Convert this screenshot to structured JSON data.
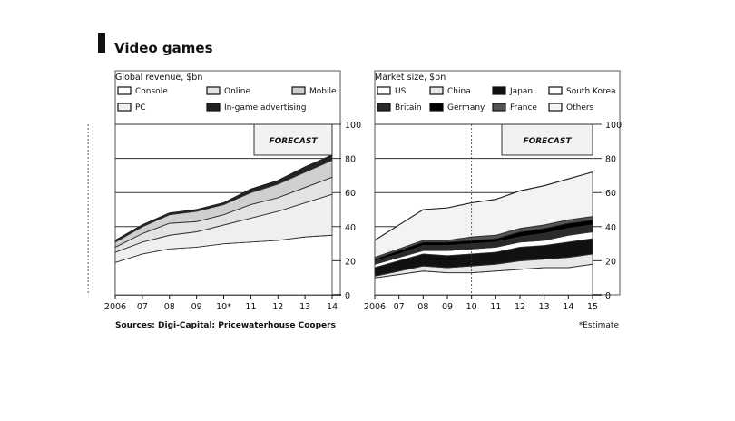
{
  "figure": {
    "title": "Video games",
    "source": "Sources: Digi-Capital; Pricewaterhouse Coopers",
    "footnote": "*Estimate"
  },
  "chart_data": [
    {
      "type": "area",
      "title": "Global revenue, $bn",
      "annotation": "FORECAST",
      "forecast_from": "2010*",
      "stacked": true,
      "x": [
        "2006",
        "07",
        "08",
        "09",
        "10*",
        "11",
        "12",
        "13",
        "14"
      ],
      "ylim": [
        0,
        100
      ],
      "yticks": [
        0,
        20,
        40,
        60,
        80,
        100
      ],
      "grid": true,
      "y_axis_side": "right",
      "legend_position": "top",
      "series": [
        {
          "name": "Console",
          "color": "#ffffff",
          "values": [
            19,
            24,
            27,
            28,
            30,
            31,
            32,
            34,
            35
          ]
        },
        {
          "name": "PC",
          "color": "#efefef",
          "values": [
            6,
            7,
            8,
            9,
            11,
            14,
            17,
            20,
            24
          ]
        },
        {
          "name": "Online",
          "color": "#e3e3e3",
          "values": [
            3,
            5,
            7,
            6,
            6,
            8,
            8,
            9,
            10
          ]
        },
        {
          "name": "Mobile",
          "color": "#cfcfcf",
          "values": [
            3,
            4,
            5,
            6,
            6,
            7,
            8,
            9,
            10
          ]
        },
        {
          "name": "In-game advertising",
          "color": "#222222",
          "values": [
            1,
            1,
            1,
            1,
            1,
            2,
            2,
            3,
            3
          ]
        }
      ],
      "legend": [
        {
          "name": "Console",
          "color": "#ffffff"
        },
        {
          "name": "Online",
          "color": "#e3e3e3"
        },
        {
          "name": "Mobile",
          "color": "#cfcfcf"
        },
        {
          "name": "PC",
          "color": "#efefef"
        },
        {
          "name": "In-game advertising",
          "color": "#222222"
        }
      ]
    },
    {
      "type": "area",
      "title": "Market size, $bn",
      "annotation": "FORECAST",
      "forecast_from": "10",
      "stacked": true,
      "x": [
        "2006",
        "07",
        "08",
        "09",
        "10",
        "11",
        "12",
        "13",
        "14",
        "15"
      ],
      "ylim": [
        0,
        100
      ],
      "yticks": [
        0,
        20,
        40,
        60,
        80,
        100
      ],
      "grid": true,
      "y_axis_side": "right",
      "legend_position": "top",
      "series": [
        {
          "name": "US",
          "color": "#ffffff",
          "values": [
            10,
            12,
            14,
            13,
            13,
            14,
            15,
            16,
            16,
            18
          ]
        },
        {
          "name": "China",
          "color": "#e8e8e8",
          "values": [
            1,
            2,
            3,
            3,
            4,
            4,
            5,
            5,
            6,
            6
          ]
        },
        {
          "name": "Japan",
          "color": "#111111",
          "values": [
            5,
            6,
            7,
            7,
            7,
            7,
            8,
            8,
            9,
            9
          ]
        },
        {
          "name": "South Korea",
          "color": "#ffffff",
          "values": [
            2,
            2,
            2,
            3,
            3,
            3,
            3,
            3,
            4,
            4
          ]
        },
        {
          "name": "Britain",
          "color": "#2a2a2a",
          "values": [
            2,
            2,
            3,
            3,
            3,
            3,
            3,
            4,
            4,
            4
          ]
        },
        {
          "name": "Germany",
          "color": "#000000",
          "values": [
            1,
            2,
            2,
            2,
            2,
            2,
            3,
            3,
            3,
            3
          ]
        },
        {
          "name": "France",
          "color": "#555555",
          "values": [
            1,
            1,
            1,
            1,
            2,
            2,
            2,
            2,
            2,
            2
          ]
        },
        {
          "name": "Others",
          "color": "#f3f3f3",
          "values": [
            10,
            14,
            18,
            19,
            20,
            21,
            22,
            23,
            24,
            26
          ]
        }
      ],
      "legend": [
        {
          "name": "US",
          "color": "#ffffff"
        },
        {
          "name": "China",
          "color": "#e8e8e8"
        },
        {
          "name": "Japan",
          "color": "#111111"
        },
        {
          "name": "South Korea",
          "color": "#ffffff"
        },
        {
          "name": "Britain",
          "color": "#2a2a2a"
        },
        {
          "name": "Germany",
          "color": "#000000"
        },
        {
          "name": "France",
          "color": "#555555"
        },
        {
          "name": "Others",
          "color": "#f3f3f3"
        }
      ]
    }
  ]
}
